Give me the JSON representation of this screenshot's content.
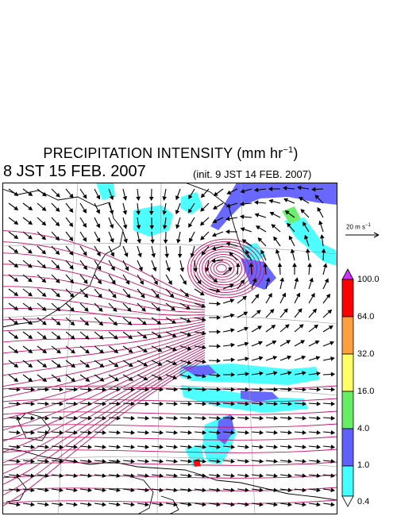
{
  "title": {
    "main": "PRECIPITATION INTENSITY (mm hr",
    "unit_exp": "−1",
    "close": ")"
  },
  "valid_time": "8 JST 15 FEB. 2007",
  "init_time": "(init. 9 JST 14 FEB. 2007)",
  "wind_reference": {
    "label": "20 m s",
    "exp": "−1"
  },
  "color_scale": {
    "levels": [
      "100.0",
      "64.0",
      "32.0",
      "16.0",
      "4.0",
      "1.0",
      "0.4"
    ],
    "colors": {
      "over": "#cc33ff",
      "band_64_100": "#ff0000",
      "band_32_64": "#ffa040",
      "band_16_32": "#ffff66",
      "band_4_16": "#66ee66",
      "band_1_4": "#6060ff",
      "band_04_1": "#44ffff",
      "under": "#ffffff"
    }
  },
  "colors": {
    "isobar": "#cc1166",
    "coast": "#000000",
    "wind_arrow": "#000000",
    "grid": "#999999"
  }
}
